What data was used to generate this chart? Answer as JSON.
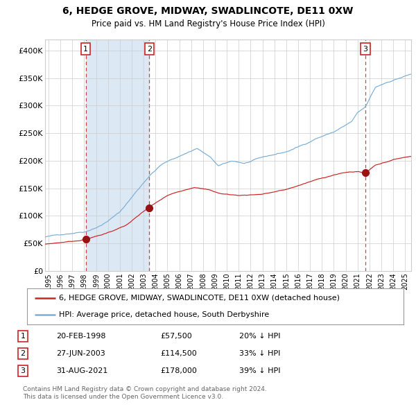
{
  "title": "6, HEDGE GROVE, MIDWAY, SWADLINCOTE, DE11 0XW",
  "subtitle": "Price paid vs. HM Land Registry's House Price Index (HPI)",
  "xlim_start": 1994.7,
  "xlim_end": 2025.5,
  "ylim_min": 0,
  "ylim_max": 420000,
  "yticks": [
    0,
    50000,
    100000,
    150000,
    200000,
    250000,
    300000,
    350000,
    400000
  ],
  "ytick_labels": [
    "£0",
    "£50K",
    "£100K",
    "£150K",
    "£200K",
    "£250K",
    "£300K",
    "£350K",
    "£400K"
  ],
  "sale_dates": [
    1998.13,
    2003.49,
    2021.66
  ],
  "sale_prices": [
    57500,
    114500,
    178000
  ],
  "sale_labels": [
    "1",
    "2",
    "3"
  ],
  "vline_dates": [
    1998.13,
    2003.49,
    2021.66
  ],
  "shaded_region": [
    1998.13,
    2003.49
  ],
  "legend_line1": "6, HEDGE GROVE, MIDWAY, SWADLINCOTE, DE11 0XW (detached house)",
  "legend_line2": "HPI: Average price, detached house, South Derbyshire",
  "table_rows": [
    {
      "num": "1",
      "date": "20-FEB-1998",
      "price": "£57,500",
      "hpi": "20% ↓ HPI"
    },
    {
      "num": "2",
      "date": "27-JUN-2003",
      "price": "£114,500",
      "hpi": "33% ↓ HPI"
    },
    {
      "num": "3",
      "date": "31-AUG-2021",
      "price": "£178,000",
      "hpi": "39% ↓ HPI"
    }
  ],
  "footnote1": "Contains HM Land Registry data © Crown copyright and database right 2024.",
  "footnote2": "This data is licensed under the Open Government Licence v3.0.",
  "hpi_color": "#7aaed6",
  "price_color": "#cc2222",
  "dot_color": "#991111",
  "shaded_color": "#dce9f5",
  "background_color": "#ffffff",
  "grid_color": "#cccccc"
}
